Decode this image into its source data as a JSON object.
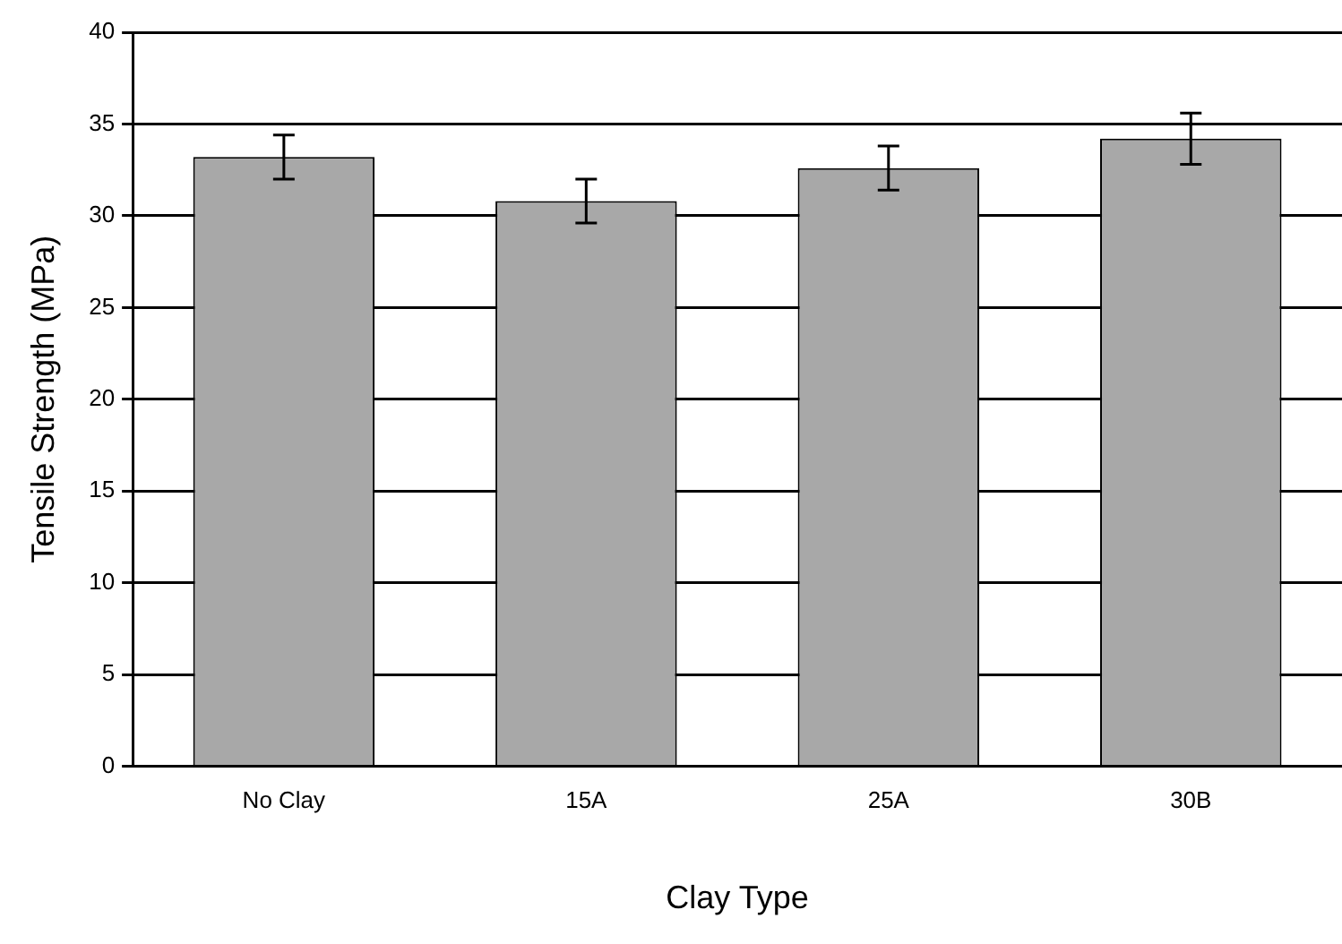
{
  "chart_data": {
    "type": "bar",
    "xlabel": "Clay Type",
    "ylabel": "Tensile Strength (MPa)",
    "categories": [
      "No Clay",
      "15A",
      "25A",
      "30B"
    ],
    "series": [
      {
        "color": "#a8a8a8",
        "values": [
          33.2,
          30.8,
          32.6,
          34.2
        ],
        "errors": [
          1.2,
          1.2,
          1.2,
          1.4
        ]
      }
    ],
    "ylim": [
      0,
      40
    ],
    "yticks": [
      0,
      5,
      10,
      15,
      20,
      25,
      30,
      35,
      40
    ],
    "grid": "y",
    "legend": false
  }
}
